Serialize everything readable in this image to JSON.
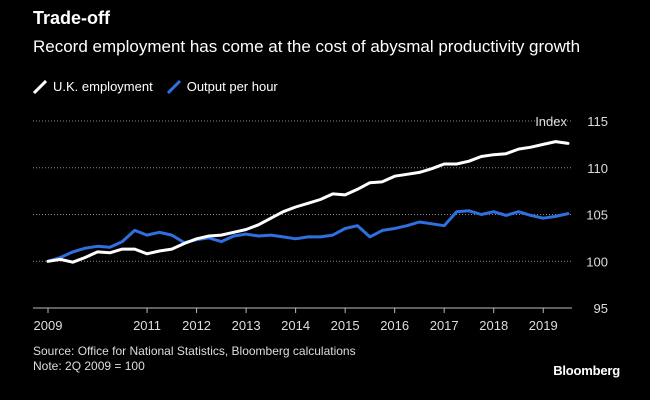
{
  "header": {
    "title": "Trade-off",
    "subtitle": "Record employment has come at the cost of abysmal productivity growth"
  },
  "legend": [
    {
      "label": "U.K. employment",
      "color": "#ffffff"
    },
    {
      "label": "Output per hour",
      "color": "#2f6fe0"
    }
  ],
  "footer": {
    "source": "Source: Office for National Statistics, Bloomberg calculations",
    "note": "Note: 2Q 2009 = 100"
  },
  "brand": "Bloomberg",
  "chart_data": {
    "type": "line",
    "title": "Trade-off",
    "ylabel": "Index",
    "ylim": [
      95,
      115
    ],
    "yticks": [
      95,
      100,
      105,
      110,
      115
    ],
    "xlim": [
      2008.9,
      2019.6
    ],
    "xticks": [
      2009,
      2011,
      2012,
      2013,
      2014,
      2015,
      2016,
      2017,
      2018,
      2019
    ],
    "grid": true,
    "series": [
      {
        "name": "U.K. employment",
        "color": "#ffffff",
        "x": [
          2009.0,
          2009.25,
          2009.5,
          2009.75,
          2010.0,
          2010.25,
          2010.5,
          2010.75,
          2011.0,
          2011.25,
          2011.5,
          2011.75,
          2012.0,
          2012.25,
          2012.5,
          2012.75,
          2013.0,
          2013.25,
          2013.5,
          2013.75,
          2014.0,
          2014.25,
          2014.5,
          2014.75,
          2015.0,
          2015.25,
          2015.5,
          2015.75,
          2016.0,
          2016.25,
          2016.5,
          2016.75,
          2017.0,
          2017.25,
          2017.5,
          2017.75,
          2018.0,
          2018.25,
          2018.5,
          2018.75,
          2019.0,
          2019.25,
          2019.5
        ],
        "values": [
          100.0,
          100.2,
          99.9,
          100.4,
          101.0,
          100.9,
          101.3,
          101.3,
          100.8,
          101.1,
          101.3,
          101.9,
          102.4,
          102.7,
          102.8,
          103.1,
          103.4,
          103.9,
          104.6,
          105.3,
          105.8,
          106.2,
          106.6,
          107.2,
          107.1,
          107.7,
          108.4,
          108.5,
          109.1,
          109.3,
          109.5,
          109.9,
          110.4,
          110.4,
          110.7,
          111.2,
          111.4,
          111.5,
          112.0,
          112.2,
          112.5,
          112.8,
          112.6
        ]
      },
      {
        "name": "Output per hour",
        "color": "#2f6fe0",
        "x": [
          2009.0,
          2009.25,
          2009.5,
          2009.75,
          2010.0,
          2010.25,
          2010.5,
          2010.75,
          2011.0,
          2011.25,
          2011.5,
          2011.75,
          2012.0,
          2012.25,
          2012.5,
          2012.75,
          2013.0,
          2013.25,
          2013.5,
          2013.75,
          2014.0,
          2014.25,
          2014.5,
          2014.75,
          2015.0,
          2015.25,
          2015.5,
          2015.75,
          2016.0,
          2016.25,
          2016.5,
          2016.75,
          2017.0,
          2017.25,
          2017.5,
          2017.75,
          2018.0,
          2018.25,
          2018.5,
          2018.75,
          2019.0,
          2019.25,
          2019.5
        ],
        "values": [
          100.0,
          100.4,
          101.0,
          101.4,
          101.6,
          101.5,
          102.1,
          103.3,
          102.8,
          103.1,
          102.8,
          102.0,
          102.3,
          102.5,
          102.1,
          102.7,
          102.9,
          102.7,
          102.8,
          102.6,
          102.4,
          102.6,
          102.6,
          102.8,
          103.5,
          103.8,
          102.6,
          103.3,
          103.5,
          103.8,
          104.2,
          104.0,
          103.8,
          105.3,
          105.4,
          105.0,
          105.3,
          104.9,
          105.3,
          104.9,
          104.6,
          104.8,
          105.1
        ]
      }
    ]
  }
}
